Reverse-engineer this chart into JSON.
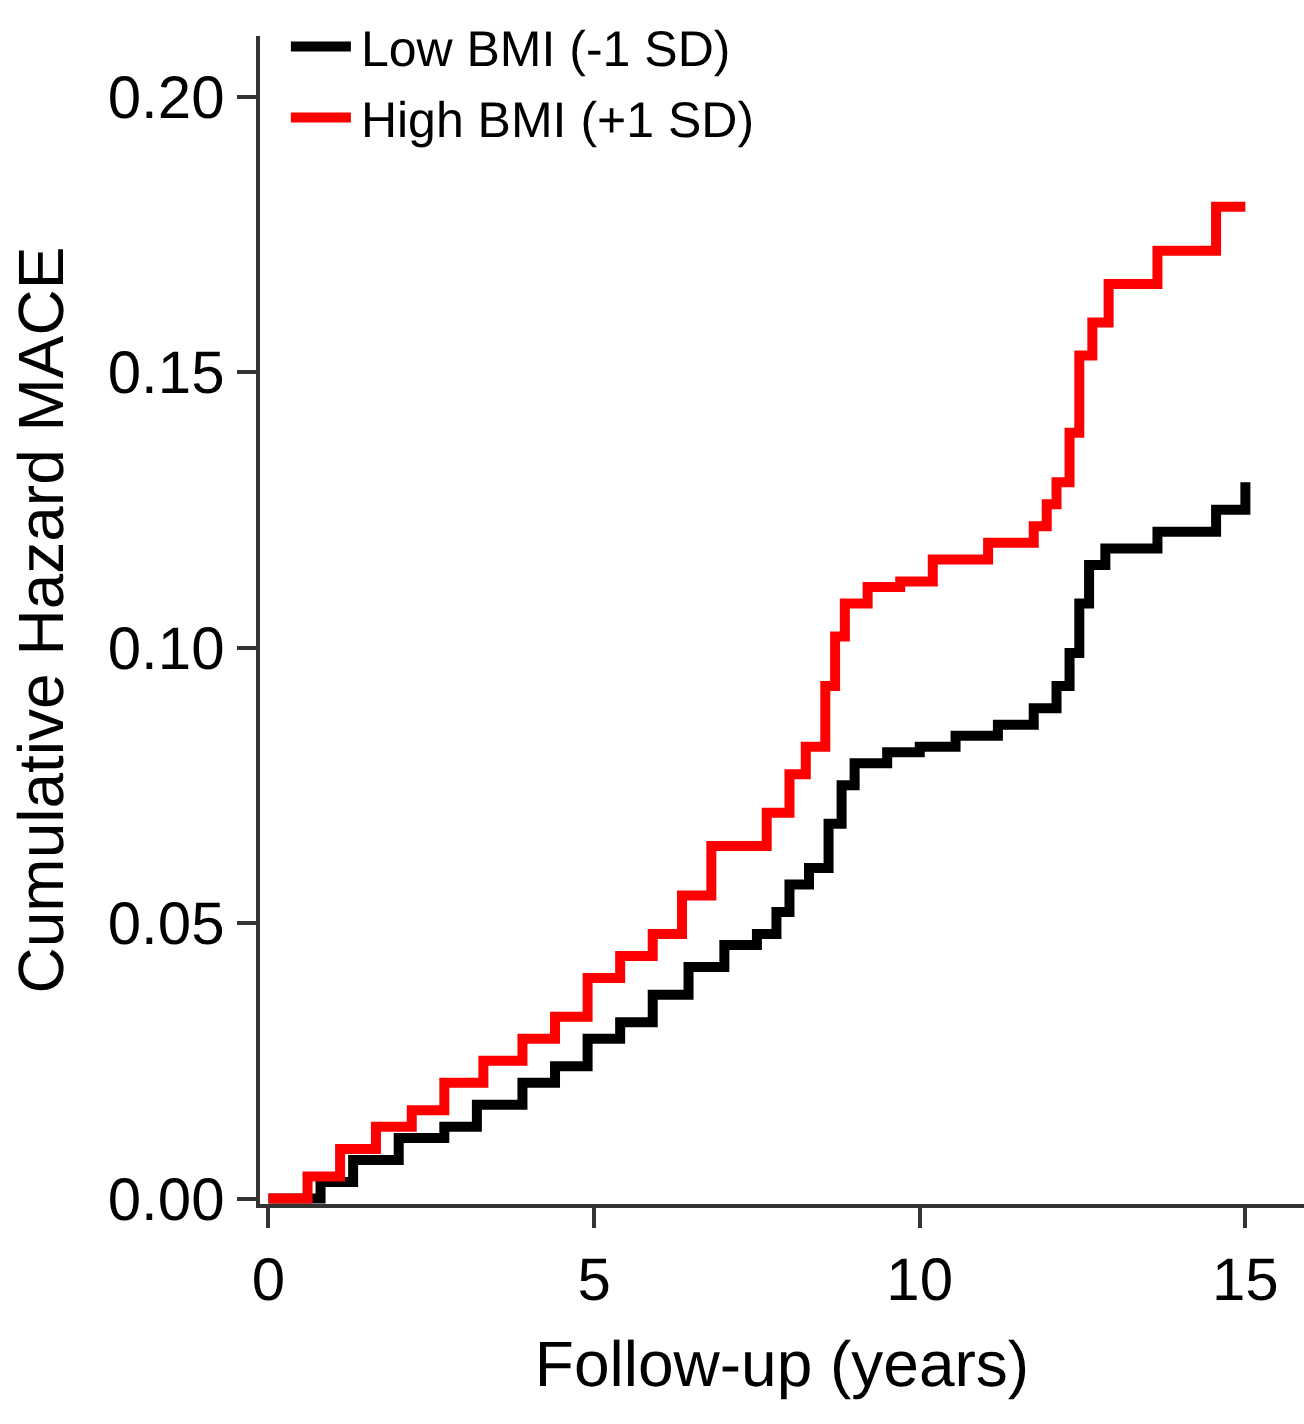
{
  "chart_data": {
    "type": "step",
    "xlabel": "Follow-up (years)",
    "ylabel": "Cumulative Hazard MACE",
    "xlim": [
      -0.13,
      15.9
    ],
    "ylim": [
      -0.001,
      0.211
    ],
    "xticks": [
      0,
      5,
      10,
      15
    ],
    "yticks": [
      {
        "value": 0,
        "label": "0.00"
      },
      {
        "value": 0.05,
        "label": "0.05"
      },
      {
        "value": 0.1,
        "label": "0.10"
      },
      {
        "value": 0.15,
        "label": "0.15"
      },
      {
        "value": 0.2,
        "label": "0.20"
      }
    ],
    "legend": "top left",
    "marker": "none",
    "line_style": "solid",
    "series": [
      {
        "name": "Low BMI (-1 SD)",
        "color": "#000000",
        "x": [
          0,
          0.8,
          1.3,
          2.0,
          2.7,
          3.2,
          3.9,
          4.4,
          4.9,
          5.4,
          5.9,
          6.45,
          7.0,
          7.5,
          7.8,
          8.0,
          8.3,
          8.6,
          8.8,
          9.0,
          9.5,
          10.0,
          10.55,
          11.2,
          11.75,
          12.1,
          12.3,
          12.45,
          12.6,
          12.85,
          13.65,
          14.55,
          15.0
        ],
        "values": [
          0,
          0.003,
          0.007,
          0.011,
          0.013,
          0.017,
          0.021,
          0.024,
          0.029,
          0.032,
          0.037,
          0.042,
          0.046,
          0.048,
          0.052,
          0.057,
          0.06,
          0.068,
          0.075,
          0.079,
          0.081,
          0.082,
          0.084,
          0.086,
          0.089,
          0.093,
          0.099,
          0.108,
          0.115,
          0.118,
          0.121,
          0.125,
          0.13
        ]
      },
      {
        "name": "High BMI (+1 SD)",
        "color": "#ff0000",
        "x": [
          0,
          0.6,
          1.1,
          1.65,
          2.2,
          2.7,
          3.3,
          3.9,
          4.4,
          4.9,
          5.4,
          5.9,
          6.35,
          6.8,
          7.3,
          7.65,
          8.0,
          8.25,
          8.55,
          8.7,
          8.85,
          9.2,
          9.7,
          10.2,
          11.05,
          11.75,
          11.95,
          12.1,
          12.3,
          12.45,
          12.65,
          12.9,
          13.65,
          14.55,
          15.0
        ],
        "values": [
          0,
          0.004,
          0.009,
          0.013,
          0.016,
          0.021,
          0.025,
          0.029,
          0.033,
          0.04,
          0.044,
          0.048,
          0.055,
          0.064,
          0.064,
          0.07,
          0.077,
          0.082,
          0.093,
          0.102,
          0.108,
          0.111,
          0.112,
          0.116,
          0.119,
          0.122,
          0.126,
          0.13,
          0.139,
          0.153,
          0.159,
          0.166,
          0.172,
          0.18,
          0.18
        ]
      }
    ]
  }
}
